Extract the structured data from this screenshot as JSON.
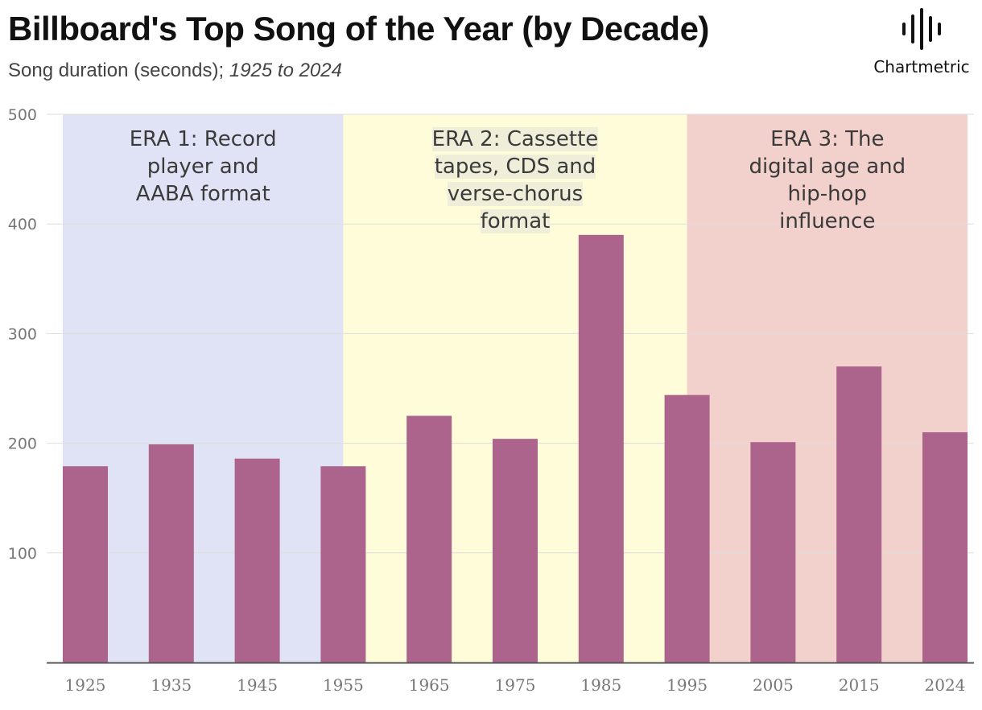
{
  "header": {
    "title": "Billboard's Top Song of the Year (by Decade)",
    "subtitle_main": "Song duration (seconds);",
    "subtitle_range": "1925 to 2024"
  },
  "brand": {
    "name": "Chartmetric",
    "icon": "waveform-logo-icon"
  },
  "colors": {
    "bar": "#ad648c",
    "era1": "#e0e3f5",
    "era2": "#fefcd9",
    "era3": "#f2d0cb",
    "grid": "#dddddd",
    "axis": "#555555",
    "tick_text": "#777777"
  },
  "chart_data": {
    "type": "bar",
    "categories": [
      "1925",
      "1935",
      "1945",
      "1955",
      "1965",
      "1975",
      "1985",
      "1995",
      "2005",
      "2015",
      "2024"
    ],
    "values": [
      179,
      199,
      186,
      179,
      225,
      204,
      390,
      244,
      201,
      270,
      210
    ],
    "ylim": [
      0,
      500
    ],
    "yticks": [
      100,
      200,
      300,
      400,
      500
    ],
    "grid": true,
    "eras": [
      {
        "label": "ERA 1: Record player and AABA format",
        "lines": [
          "ERA 1: Record",
          "player and",
          "AABA format"
        ],
        "start_index": 0,
        "end_index": 3
      },
      {
        "label": "ERA 2: Cassette tapes, CDS and verse-chorus format",
        "lines": [
          "ERA 2: Cassette",
          "tapes, CDS and",
          "verse-chorus",
          "format"
        ],
        "start_index": 3,
        "end_index": 7
      },
      {
        "label": "ERA 3: The digital age and hip-hop influence",
        "lines": [
          "ERA 3: The",
          "digital age and",
          "hip-hop",
          "influence"
        ],
        "start_index": 7,
        "end_index": 10
      }
    ]
  }
}
